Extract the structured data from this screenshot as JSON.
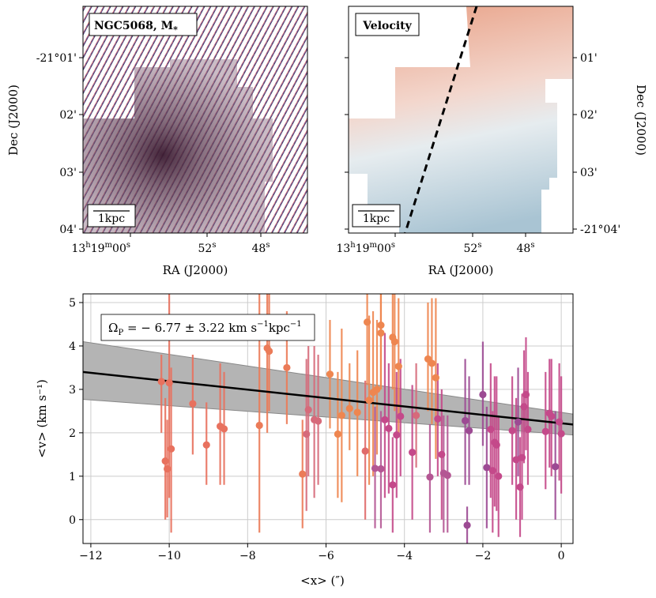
{
  "figure": {
    "left_panel": {
      "label": "NGC5068, M",
      "label_sub": "*",
      "scalebar": "1kpc",
      "xlabel": "RA (J2000)",
      "ylabel": "Dec (J2000)",
      "yticks": [
        "-21°01'",
        "02'",
        "03'",
        "04'"
      ],
      "xticks": [
        {
          "h": "13",
          "hu": "h",
          "m": "19",
          "mu": "m",
          "s": "00",
          "su": "s"
        },
        {
          "s": "52",
          "su": "s"
        },
        {
          "s": "48",
          "su": "s"
        }
      ]
    },
    "right_panel": {
      "label": "Velocity",
      "scalebar": "1kpc",
      "xlabel": "RA (J2000)",
      "ylabel": "Dec (J2000)",
      "yticks": [
        "01'",
        "02'",
        "03'",
        "-21°04'"
      ],
      "xticks": [
        {
          "h": "13",
          "hu": "h",
          "m": "19",
          "mu": "m",
          "s": "00",
          "su": "s"
        },
        {
          "s": "52",
          "su": "s"
        },
        {
          "s": "48",
          "su": "s"
        }
      ]
    }
  },
  "chart_data": {
    "type": "scatter",
    "xlabel": "<x> (″)",
    "ylabel": "<v> (km s⁻¹)",
    "xlim": [
      -12.2,
      0.3
    ],
    "ylim": [
      -0.55,
      5.2
    ],
    "xticks": [
      -12,
      -10,
      -8,
      -6,
      -4,
      -2,
      0
    ],
    "yticks": [
      0,
      1,
      2,
      3,
      4,
      5
    ],
    "grid": true,
    "annotation": "Ω_P = −6.77 ± 3.22 km s⁻¹ kpc⁻¹",
    "annotation_parts": {
      "omega": "Ω",
      "omega_sub": "P",
      "value": " = − 6.77 ± 3.22 km s",
      "exp1": "−1",
      "mid": "kpc",
      "exp2": "−1"
    },
    "fit_line": {
      "x": [
        -12.2,
        0.3
      ],
      "y": [
        3.4,
        2.19
      ]
    },
    "fit_band": {
      "x": [
        -12.2,
        0.3
      ],
      "upper": [
        4.1,
        2.43
      ],
      "lower": [
        2.77,
        1.95
      ]
    },
    "colors": {
      "orange": "#f08a4b",
      "magenta": "#c4498a",
      "purple": "#8d3f8f",
      "band": "#b4b4b4",
      "fit": "#000000"
    },
    "points": [
      {
        "x": -10.2,
        "y": 3.18,
        "lo": 2.0,
        "hi": 3.8,
        "c": "#e8715e"
      },
      {
        "x": -10.1,
        "y": 1.35,
        "lo": 0.0,
        "hi": 2.8,
        "c": "#e8715e"
      },
      {
        "x": -10.05,
        "y": 1.17,
        "lo": 0.05,
        "hi": 2.3,
        "c": "#e8715e"
      },
      {
        "x": -10.0,
        "y": 3.15,
        "lo": 0.5,
        "hi": 5.2,
        "c": "#e8715e"
      },
      {
        "x": -9.95,
        "y": 1.63,
        "lo": -0.3,
        "hi": 3.5,
        "c": "#e8715e"
      },
      {
        "x": -9.4,
        "y": 2.67,
        "lo": 1.5,
        "hi": 3.8,
        "c": "#e8715e"
      },
      {
        "x": -9.05,
        "y": 1.72,
        "lo": 0.8,
        "hi": 2.7,
        "c": "#e8715e"
      },
      {
        "x": -8.7,
        "y": 2.15,
        "lo": 0.8,
        "hi": 3.6,
        "c": "#e8715e"
      },
      {
        "x": -8.6,
        "y": 2.09,
        "lo": 0.8,
        "hi": 3.4,
        "c": "#e8715e"
      },
      {
        "x": -7.7,
        "y": 2.17,
        "lo": -0.3,
        "hi": 5.2,
        "c": "#eb7b58"
      },
      {
        "x": -7.5,
        "y": 3.95,
        "lo": 2.0,
        "hi": 5.2,
        "c": "#eb7b58"
      },
      {
        "x": -7.45,
        "y": 3.88,
        "lo": 2.5,
        "hi": 5.2,
        "c": "#eb7b58"
      },
      {
        "x": -7.0,
        "y": 3.5,
        "lo": 2.2,
        "hi": 4.8,
        "c": "#eb7b58"
      },
      {
        "x": -6.6,
        "y": 1.05,
        "lo": -0.2,
        "hi": 2.3,
        "c": "#eb7b58"
      },
      {
        "x": -6.45,
        "y": 2.53,
        "lo": 1.0,
        "hi": 4.0,
        "c": "#d66a7a"
      },
      {
        "x": -6.5,
        "y": 1.97,
        "lo": 0.2,
        "hi": 3.7,
        "c": "#d66a7a"
      },
      {
        "x": -6.3,
        "y": 2.3,
        "lo": 0.5,
        "hi": 4.0,
        "c": "#d66a7a"
      },
      {
        "x": -6.2,
        "y": 2.27,
        "lo": 0.8,
        "hi": 3.8,
        "c": "#d66a7a"
      },
      {
        "x": -5.9,
        "y": 3.35,
        "lo": 2.1,
        "hi": 4.6,
        "c": "#ee8650"
      },
      {
        "x": -5.7,
        "y": 1.97,
        "lo": 0.5,
        "hi": 3.4,
        "c": "#ee8650"
      },
      {
        "x": -5.6,
        "y": 2.4,
        "lo": 0.4,
        "hi": 4.4,
        "c": "#ee8650"
      },
      {
        "x": -5.4,
        "y": 2.56,
        "lo": 1.6,
        "hi": 3.6,
        "c": "#ee8650"
      },
      {
        "x": -5.2,
        "y": 2.47,
        "lo": 1.0,
        "hi": 3.9,
        "c": "#ee8650"
      },
      {
        "x": -4.95,
        "y": 4.55,
        "lo": 3.1,
        "hi": 5.2,
        "c": "#ee8650"
      },
      {
        "x": -4.9,
        "y": 2.75,
        "lo": 0.8,
        "hi": 4.7,
        "c": "#ee8650"
      },
      {
        "x": -4.8,
        "y": 2.93,
        "lo": 1.0,
        "hi": 4.8,
        "c": "#ee8650"
      },
      {
        "x": -4.7,
        "y": 3.0,
        "lo": 1.5,
        "hi": 4.6,
        "c": "#ee8650"
      },
      {
        "x": -4.6,
        "y": 4.48,
        "lo": 3.0,
        "hi": 5.2,
        "c": "#ee8650"
      },
      {
        "x": -4.6,
        "y": 4.3,
        "lo": 3.0,
        "hi": 5.2,
        "c": "#ee8650"
      },
      {
        "x": -5.0,
        "y": 1.58,
        "lo": 0.0,
        "hi": 3.2,
        "c": "#e06b6b"
      },
      {
        "x": -4.3,
        "y": 4.2,
        "lo": 3.0,
        "hi": 5.2,
        "c": "#ee8650"
      },
      {
        "x": -4.25,
        "y": 4.1,
        "lo": 2.5,
        "hi": 5.2,
        "c": "#ee8650"
      },
      {
        "x": -4.15,
        "y": 3.53,
        "lo": 2.0,
        "hi": 5.1,
        "c": "#ee8650"
      },
      {
        "x": -4.75,
        "y": 1.18,
        "lo": -0.2,
        "hi": 2.6,
        "c": "#b45693"
      },
      {
        "x": -4.6,
        "y": 1.17,
        "lo": -0.2,
        "hi": 2.5,
        "c": "#b45693"
      },
      {
        "x": -4.5,
        "y": 2.3,
        "lo": 0.5,
        "hi": 4.3,
        "c": "#c4498a"
      },
      {
        "x": -4.4,
        "y": 2.1,
        "lo": 0.6,
        "hi": 3.6,
        "c": "#c4498a"
      },
      {
        "x": -4.3,
        "y": 0.8,
        "lo": -0.3,
        "hi": 1.9,
        "c": "#c4498a"
      },
      {
        "x": -4.2,
        "y": 1.95,
        "lo": 0.5,
        "hi": 3.4,
        "c": "#c4498a"
      },
      {
        "x": -4.1,
        "y": 2.38,
        "lo": 1.0,
        "hi": 3.7,
        "c": "#c4498a"
      },
      {
        "x": -3.8,
        "y": 1.55,
        "lo": 0.0,
        "hi": 3.1,
        "c": "#c4498a"
      },
      {
        "x": -3.7,
        "y": 2.4,
        "lo": 1.2,
        "hi": 3.6,
        "c": "#d66a7a"
      },
      {
        "x": -3.4,
        "y": 3.7,
        "lo": 2.5,
        "hi": 5.0,
        "c": "#ee8650"
      },
      {
        "x": -3.3,
        "y": 3.6,
        "lo": 2.2,
        "hi": 5.1,
        "c": "#ee8650"
      },
      {
        "x": -3.2,
        "y": 3.27,
        "lo": 1.4,
        "hi": 5.1,
        "c": "#ee8650"
      },
      {
        "x": -3.15,
        "y": 2.32,
        "lo": 1.0,
        "hi": 3.6,
        "c": "#c4498a"
      },
      {
        "x": -3.05,
        "y": 1.5,
        "lo": 0.0,
        "hi": 3.0,
        "c": "#c4498a"
      },
      {
        "x": -3.0,
        "y": 1.07,
        "lo": -0.3,
        "hi": 2.4,
        "c": "#b45693"
      },
      {
        "x": -2.9,
        "y": 1.02,
        "lo": -0.3,
        "hi": 2.4,
        "c": "#b45693"
      },
      {
        "x": -3.35,
        "y": 0.98,
        "lo": -0.3,
        "hi": 2.2,
        "c": "#b45693"
      },
      {
        "x": -2.45,
        "y": 2.28,
        "lo": 0.8,
        "hi": 3.7,
        "c": "#9c4a93"
      },
      {
        "x": -2.4,
        "y": -0.13,
        "lo": -0.55,
        "hi": 0.3,
        "c": "#9c4a93"
      },
      {
        "x": -2.35,
        "y": 2.05,
        "lo": 0.8,
        "hi": 3.3,
        "c": "#9c4a93"
      },
      {
        "x": -2.0,
        "y": 2.88,
        "lo": 1.7,
        "hi": 4.1,
        "c": "#9c4a93"
      },
      {
        "x": -1.9,
        "y": 1.2,
        "lo": -0.2,
        "hi": 2.6,
        "c": "#9c4a93"
      },
      {
        "x": -1.8,
        "y": 2.08,
        "lo": 0.5,
        "hi": 3.6,
        "c": "#c4498a"
      },
      {
        "x": -1.75,
        "y": 1.13,
        "lo": -0.3,
        "hi": 2.5,
        "c": "#c4498a"
      },
      {
        "x": -1.7,
        "y": 1.78,
        "lo": 0.3,
        "hi": 3.3,
        "c": "#c4498a"
      },
      {
        "x": -1.65,
        "y": 1.72,
        "lo": 0.2,
        "hi": 3.3,
        "c": "#c4498a"
      },
      {
        "x": -1.6,
        "y": 1.0,
        "lo": -0.4,
        "hi": 2.4,
        "c": "#c4498a"
      },
      {
        "x": -1.25,
        "y": 2.05,
        "lo": 0.8,
        "hi": 3.3,
        "c": "#c4498a"
      },
      {
        "x": -1.15,
        "y": 1.38,
        "lo": 0.0,
        "hi": 2.8,
        "c": "#c4498a"
      },
      {
        "x": -1.1,
        "y": 2.25,
        "lo": 1.0,
        "hi": 3.5,
        "c": "#9c4a93"
      },
      {
        "x": -1.05,
        "y": 0.75,
        "lo": -0.4,
        "hi": 1.9,
        "c": "#c4498a"
      },
      {
        "x": -1.0,
        "y": 1.43,
        "lo": 0.0,
        "hi": 2.9,
        "c": "#c4498a"
      },
      {
        "x": -0.95,
        "y": 2.6,
        "lo": 1.3,
        "hi": 3.9,
        "c": "#c4498a"
      },
      {
        "x": -0.9,
        "y": 2.88,
        "lo": 1.6,
        "hi": 4.2,
        "c": "#c4498a"
      },
      {
        "x": -0.85,
        "y": 2.08,
        "lo": 0.8,
        "hi": 3.4,
        "c": "#c4498a"
      },
      {
        "x": -0.4,
        "y": 2.03,
        "lo": 0.7,
        "hi": 3.4,
        "c": "#c4498a"
      },
      {
        "x": -0.3,
        "y": 2.45,
        "lo": 1.2,
        "hi": 3.7,
        "c": "#c4498a"
      },
      {
        "x": -0.25,
        "y": 2.38,
        "lo": 1.0,
        "hi": 3.7,
        "c": "#c4498a"
      },
      {
        "x": -0.15,
        "y": 1.22,
        "lo": 0.0,
        "hi": 2.5,
        "c": "#9c4a93"
      },
      {
        "x": -0.05,
        "y": 2.25,
        "lo": 0.9,
        "hi": 3.6,
        "c": "#c4498a"
      },
      {
        "x": 0.0,
        "y": 1.98,
        "lo": 0.6,
        "hi": 3.3,
        "c": "#c4498a"
      }
    ]
  }
}
